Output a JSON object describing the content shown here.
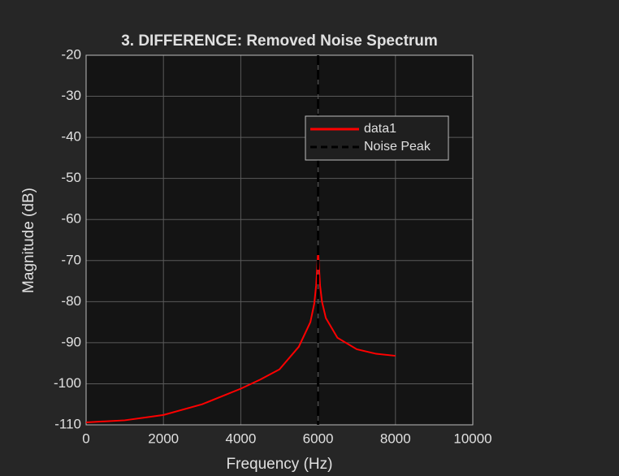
{
  "chart_data": {
    "type": "line",
    "title": "3. DIFFERENCE: Removed Noise Spectrum",
    "xlabel": "Frequency (Hz)",
    "ylabel": "Magnitude (dB)",
    "x": [
      0,
      1000,
      2000,
      3000,
      4000,
      4500,
      5000,
      5500,
      5800,
      5900,
      5950,
      6000,
      6050,
      6100,
      6200,
      6500,
      7000,
      7500,
      8000
    ],
    "series": [
      {
        "name": "data1",
        "color": "#ff0000",
        "values": [
          -109.4,
          -108.9,
          -107.6,
          -105,
          -101.2,
          -99,
          -96.5,
          -91,
          -85,
          -80.5,
          -76,
          -67.8,
          -76,
          -80,
          -84,
          -88.8,
          -91.6,
          -92.7,
          -93.2
        ]
      }
    ],
    "reference_lines": [
      {
        "name": "Noise Peak",
        "x": 6000,
        "color": "#000000"
      }
    ],
    "xlim": [
      0,
      10000
    ],
    "xticks": [
      0,
      2000,
      4000,
      6000,
      8000,
      10000
    ],
    "ylim": [
      -110,
      -20
    ],
    "yticks": [
      -110,
      -100,
      -90,
      -80,
      -70,
      -60,
      -50,
      -40,
      -30,
      -20
    ],
    "grid": true,
    "legend": "upper-right"
  }
}
